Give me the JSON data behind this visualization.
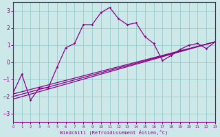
{
  "xlabel": "Windchill (Refroidissement éolien,°C)",
  "bg_color": "#cce8e8",
  "grid_color": "#99cccc",
  "line_color": "#880088",
  "xlim": [
    0,
    23
  ],
  "ylim": [
    -3.5,
    3.5
  ],
  "xticks": [
    0,
    1,
    2,
    3,
    4,
    5,
    6,
    7,
    8,
    9,
    10,
    11,
    12,
    13,
    14,
    15,
    16,
    17,
    18,
    19,
    20,
    21,
    22,
    23
  ],
  "yticks": [
    -3,
    -2,
    -1,
    0,
    1,
    2,
    3
  ],
  "curve1": {
    "x": [
      0,
      1,
      2,
      3,
      4,
      5,
      6,
      7,
      8,
      9,
      10,
      11,
      12,
      13,
      14,
      15,
      16,
      17,
      18,
      19,
      20,
      21,
      22,
      23
    ],
    "y": [
      -1.8,
      -0.7,
      -2.2,
      -1.5,
      -1.5,
      -0.3,
      0.85,
      1.1,
      2.2,
      2.2,
      2.9,
      3.2,
      2.55,
      2.2,
      2.3,
      1.5,
      1.1,
      0.1,
      0.4,
      0.75,
      1.0,
      1.1,
      0.8,
      1.2
    ]
  },
  "ref_lines": [
    {
      "x0": 0,
      "y0": -1.85,
      "x1": 23,
      "y1": 1.2
    },
    {
      "x0": 0,
      "y0": -2.0,
      "x1": 23,
      "y1": 1.2
    },
    {
      "x0": 0,
      "y0": -2.15,
      "x1": 23,
      "y1": 1.2
    }
  ]
}
